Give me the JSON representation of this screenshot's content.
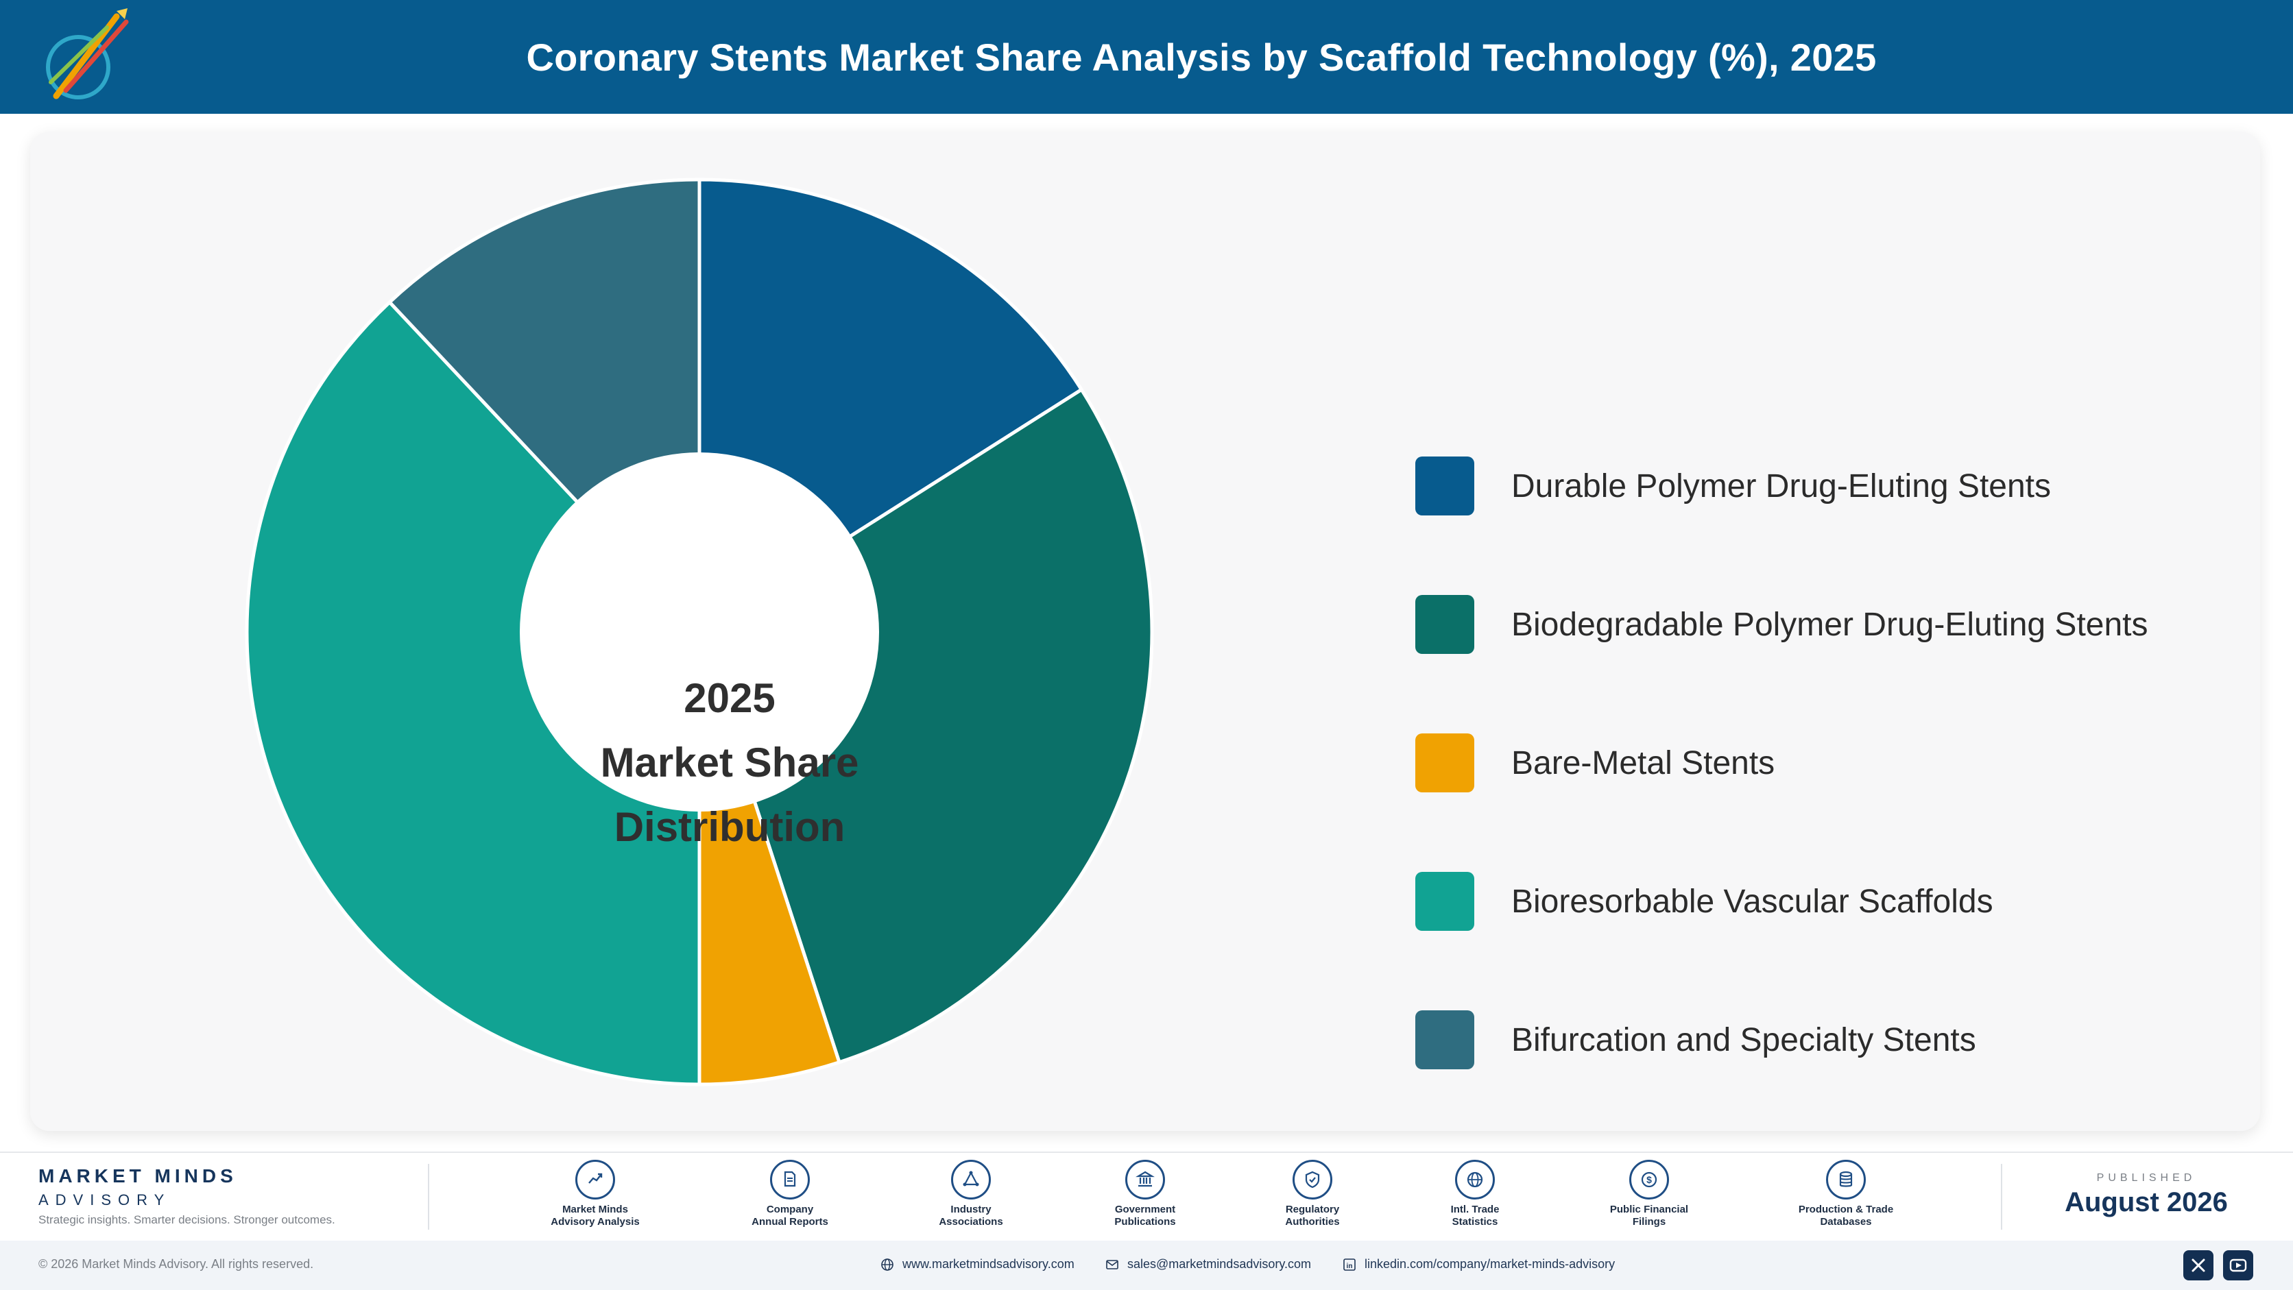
{
  "header": {
    "title": "Coronary Stents Market Share Analysis by Scaffold Technology (%), 2025",
    "logo_icon": "market-minds-logo-icon"
  },
  "chart_data": {
    "type": "pie",
    "variant": "donut",
    "title": "Coronary Stents Market Share Analysis by Scaffold Technology (%), 2025",
    "center_label": [
      "2025",
      "Market Share",
      "Distribution"
    ],
    "categories": [
      "Durable Polymer Drug-Eluting Stents",
      "Biodegradable Polymer Drug-Eluting Stents",
      "Bare-Metal Stents",
      "Bioresorbable Vascular Scaffolds",
      "Bifurcation and Specialty Stents"
    ],
    "values": [
      16,
      29,
      5,
      38,
      12
    ],
    "colors": [
      "#075b8e",
      "#0b7068",
      "#f0a202",
      "#11a393",
      "#2f6d80"
    ],
    "legend_position": "right",
    "data_labels": false
  },
  "footer": {
    "brand_name": "MARKET MINDS",
    "brand_sub": "ADVISORY",
    "brand_tagline": "Strategic insights. Smarter decisions. Stronger outcomes.",
    "sources": [
      {
        "label": "Market Minds\nAdvisory Analysis",
        "icon": "chart-line-icon"
      },
      {
        "label": "Company\nAnnual Reports",
        "icon": "document-icon"
      },
      {
        "label": "Industry\nAssociations",
        "icon": "network-icon"
      },
      {
        "label": "Government\nPublications",
        "icon": "government-building-icon"
      },
      {
        "label": "Regulatory\nAuthorities",
        "icon": "shield-check-icon"
      },
      {
        "label": "Intl. Trade\nStatistics",
        "icon": "globe-icon"
      },
      {
        "label": "Public Financial\nFilings",
        "icon": "dollar-coin-icon"
      },
      {
        "label": "Production & Trade\nDatabases",
        "icon": "database-icon"
      }
    ],
    "published_label": "PUBLISHED",
    "published_date": "August 2026"
  },
  "bottom_bar": {
    "copyright": "© 2026 Market Minds Advisory. All rights reserved.",
    "website": "www.marketmindsadvisory.com",
    "email": "sales@marketmindsadvisory.com",
    "linkedin": "linkedin.com/company/market-minds-advisory",
    "social_icons": [
      "x-icon",
      "youtube-icon"
    ]
  }
}
